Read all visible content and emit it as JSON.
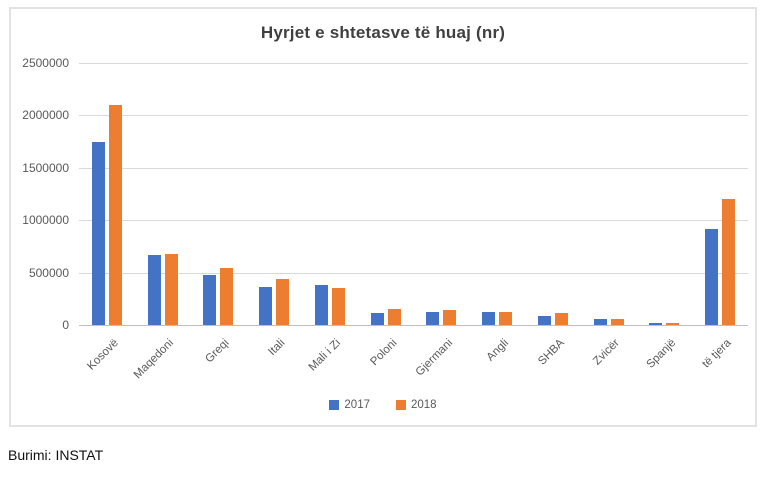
{
  "chart_data": {
    "type": "bar",
    "title": "Hyrjet e shtetasve të huaj (nr)",
    "categories": [
      "Kosovë",
      "Maqedoni",
      "Greqi",
      "Itali",
      "Mali i Zi",
      "Poloni",
      "Gjermani",
      "Angli",
      "SHBA",
      "Zvicër",
      "Spanjë",
      "të tjera"
    ],
    "series": [
      {
        "name": "2017",
        "color": "#4472C4",
        "values": [
          1750000,
          670000,
          480000,
          365000,
          380000,
          110000,
          120000,
          125000,
          90000,
          60000,
          20000,
          920000
        ]
      },
      {
        "name": "2018",
        "color": "#ED7D31",
        "values": [
          2100000,
          680000,
          545000,
          435000,
          355000,
          155000,
          145000,
          120000,
          110000,
          55000,
          15000,
          1200000
        ]
      }
    ],
    "ylim": [
      0,
      2500000
    ],
    "yticks": [
      0,
      500000,
      1000000,
      1500000,
      2000000,
      2500000
    ],
    "ytick_labels": [
      "0",
      "500000",
      "1000000",
      "1500000",
      "2000000",
      "2500000"
    ],
    "grid": "horizontal",
    "legend_position": "bottom"
  },
  "colors": {
    "series_2017": "#4472C4",
    "series_2018": "#ED7D31",
    "gridline": "#d9d9d9",
    "axis_text": "#595959",
    "title_text": "#404040"
  },
  "source_note": "Burimi: INSTAT"
}
